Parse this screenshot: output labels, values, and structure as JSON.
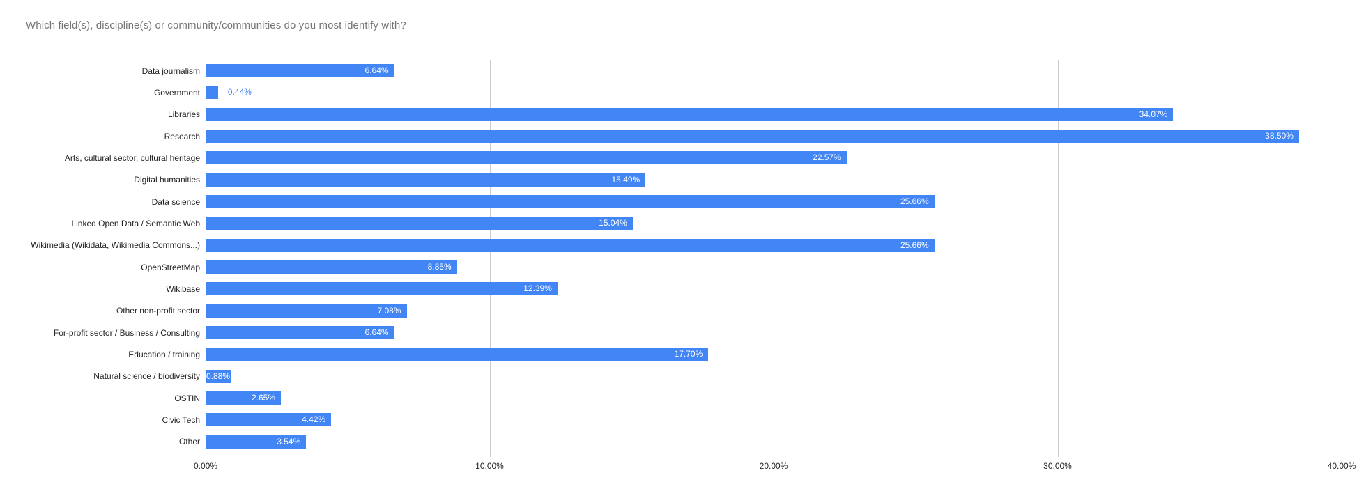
{
  "title": "Which field(s), discipline(s) or community/communities do you most identify with?",
  "colors": {
    "bar": "#4285f4",
    "title_text": "#757575",
    "gridline": "#cccccc",
    "axis_line": "#333333",
    "value_label_inside": "#ffffff",
    "value_label_outside": "#4285f4",
    "category_label": "#222222"
  },
  "chart_data": {
    "type": "bar",
    "orientation": "horizontal",
    "title": "Which field(s), discipline(s) or community/communities do you most identify with?",
    "xlabel": "",
    "ylabel": "",
    "xlim": [
      0,
      40
    ],
    "grid": true,
    "legend": "none",
    "x_ticks": [
      "0.00%",
      "10.00%",
      "20.00%",
      "30.00%",
      "40.00%"
    ],
    "x_tick_values": [
      0,
      10,
      20,
      30,
      40
    ],
    "categories": [
      "Data journalism",
      "Government",
      "Libraries",
      "Research",
      "Arts, cultural sector, cultural heritage",
      "Digital humanities",
      "Data science",
      "Linked Open Data / Semantic Web",
      "Wikimedia (Wikidata, Wikimedia Commons...)",
      "OpenStreetMap",
      "Wikibase",
      "Other non-profit sector",
      "For-profit sector / Business / Consulting",
      "Education / training",
      "Natural science / biodiversity",
      "OSTIN",
      "Civic Tech",
      "Other"
    ],
    "values": [
      6.64,
      0.44,
      34.07,
      38.5,
      22.57,
      15.49,
      25.66,
      15.04,
      25.66,
      8.85,
      12.39,
      7.08,
      6.64,
      17.7,
      0.88,
      2.65,
      4.42,
      3.54
    ],
    "value_labels": [
      "6.64%",
      "0.44%",
      "34.07%",
      "38.50%",
      "22.57%",
      "15.49%",
      "25.66%",
      "15.04%",
      "25.66%",
      "8.85%",
      "12.39%",
      "7.08%",
      "6.64%",
      "17.70%",
      "0.88%",
      "2.65%",
      "4.42%",
      "3.54%"
    ]
  }
}
